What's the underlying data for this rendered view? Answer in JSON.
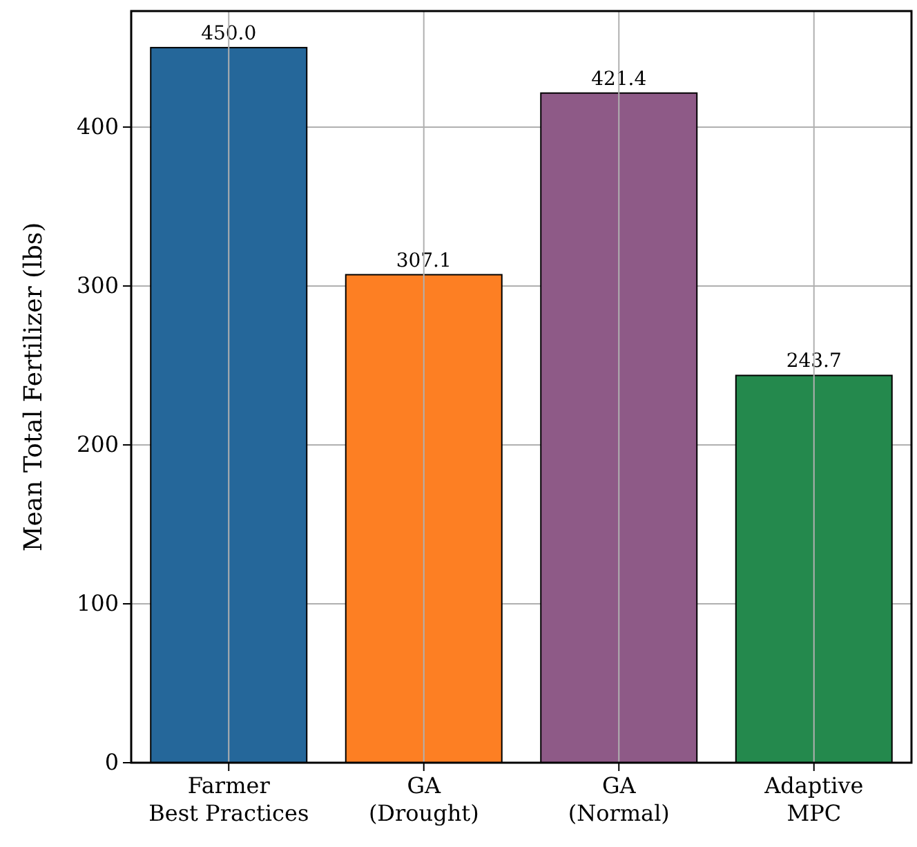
{
  "chart_data": {
    "type": "bar",
    "ylabel": "Mean Total Fertilizer (lbs)",
    "categories": [
      "Farmer\nBest Practices",
      "GA\n(Drought)",
      "GA\n(Normal)",
      "Adaptive\nMPC"
    ],
    "values": [
      450.0,
      307.1,
      421.4,
      243.7
    ],
    "colors": [
      "#25679a",
      "#fd7f23",
      "#8e5a87",
      "#24894d"
    ],
    "value_labels": [
      "450.0",
      "307.1",
      "421.4",
      "243.7"
    ],
    "ylim": [
      0,
      473
    ],
    "yticks": [
      0,
      100,
      200,
      300,
      400
    ],
    "grid": true
  }
}
